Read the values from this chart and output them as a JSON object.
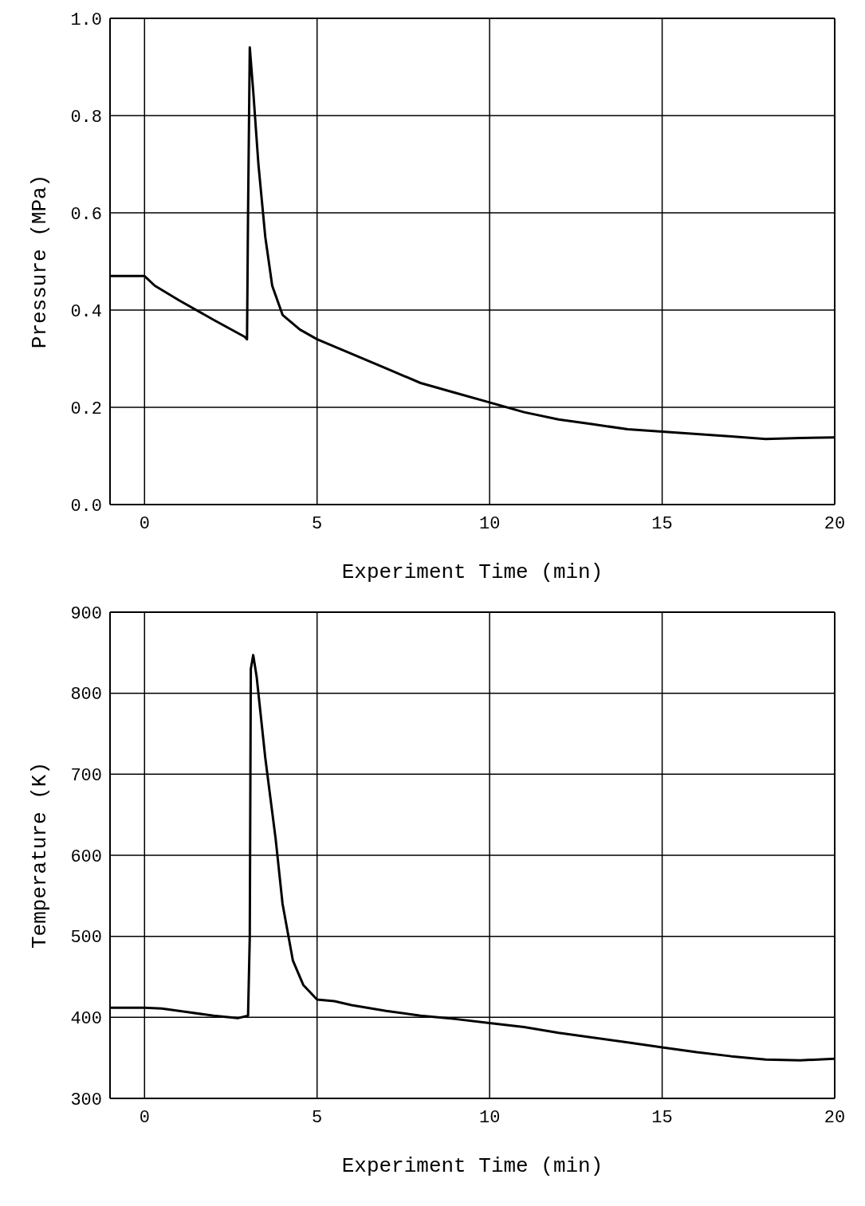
{
  "chart_data": [
    {
      "type": "line",
      "xlabel": "Experiment Time (min)",
      "ylabel": "Pressure (MPa)",
      "xlim": [
        -1,
        20
      ],
      "xticks": [
        0,
        5,
        10,
        15,
        20
      ],
      "ylim": [
        0,
        1
      ],
      "yticks": [
        {
          "value": 0,
          "label": "0.0"
        },
        {
          "value": 0.2,
          "label": "0.2"
        },
        {
          "value": 0.4,
          "label": "0.4"
        },
        {
          "value": 0.6,
          "label": "0.6"
        },
        {
          "value": 0.8,
          "label": "0.8"
        },
        {
          "value": 1,
          "label": "1.0"
        }
      ],
      "grid": true,
      "marker": "none",
      "line_style": "solid",
      "series": [
        {
          "color": "#000000",
          "x": [
            -1,
            0,
            0.3,
            1,
            2,
            2.9,
            2.97,
            3.0,
            3.05,
            3.15,
            3.3,
            3.5,
            3.7,
            4,
            4.5,
            5,
            6,
            7,
            8,
            9,
            10,
            11,
            12,
            13,
            14,
            15,
            16,
            17,
            18,
            19,
            20
          ],
          "values": [
            0.47,
            0.47,
            0.45,
            0.42,
            0.38,
            0.345,
            0.34,
            0.6,
            0.94,
            0.85,
            0.7,
            0.55,
            0.45,
            0.39,
            0.36,
            0.34,
            0.31,
            0.28,
            0.25,
            0.23,
            0.21,
            0.19,
            0.175,
            0.165,
            0.155,
            0.15,
            0.145,
            0.14,
            0.135,
            0.137,
            0.138
          ]
        }
      ]
    },
    {
      "type": "line",
      "xlabel": "Experiment Time (min)",
      "ylabel": "Temperature (K)",
      "xlim": [
        -1,
        20
      ],
      "xticks": [
        0,
        5,
        10,
        15,
        20
      ],
      "ylim": [
        300,
        900
      ],
      "yticks": [
        300,
        400,
        500,
        600,
        700,
        800,
        900
      ],
      "grid": true,
      "marker": "none",
      "line_style": "solid",
      "series": [
        {
          "color": "#000000",
          "x": [
            -1,
            0,
            0.5,
            1,
            2,
            2.7,
            3.0,
            3.05,
            3.08,
            3.15,
            3.25,
            3.5,
            3.8,
            4.0,
            4.3,
            4.6,
            5,
            5.5,
            6,
            7,
            8,
            9,
            10,
            11,
            12,
            13,
            14,
            15,
            16,
            17,
            18,
            19,
            20
          ],
          "values": [
            412,
            412,
            411,
            408,
            402,
            399,
            402,
            500,
            830,
            847,
            820,
            720,
            620,
            540,
            470,
            440,
            422,
            420,
            415,
            408,
            402,
            398,
            393,
            388,
            381,
            375,
            369,
            363,
            357,
            352,
            348,
            347,
            349
          ]
        }
      ]
    }
  ]
}
